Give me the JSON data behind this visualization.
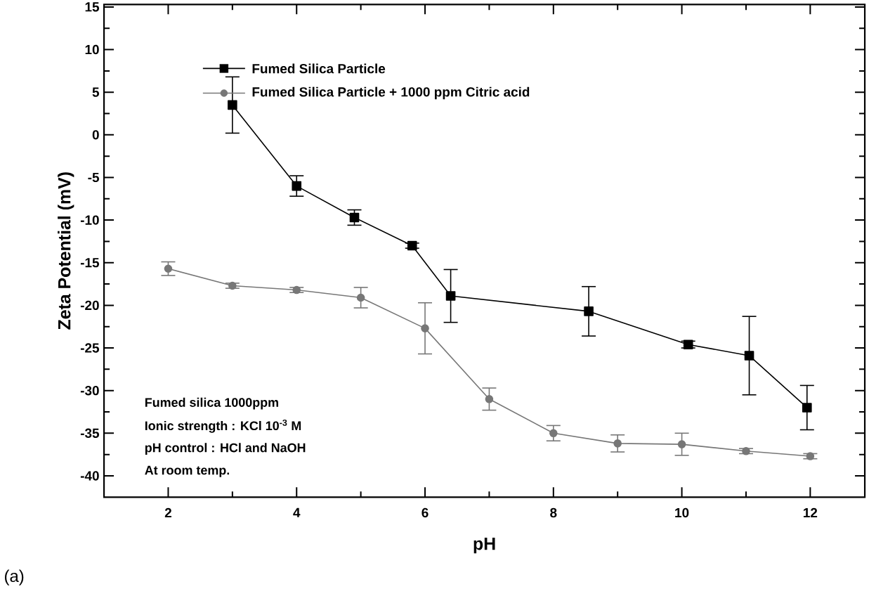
{
  "chart_data": {
    "type": "line",
    "xlabel": "pH",
    "ylabel": "Zeta Potential (mV)",
    "xlim": [
      1,
      12.85
    ],
    "ylim": [
      -42.5,
      15.3
    ],
    "xticks": [
      2,
      4,
      6,
      8,
      10,
      12
    ],
    "yticks": [
      -40,
      -35,
      -30,
      -25,
      -20,
      -15,
      -10,
      -5,
      0,
      5,
      10,
      15
    ],
    "legend": "top",
    "grid": false,
    "series": [
      {
        "name": "Fumed Silica Particle",
        "color": "#000000",
        "marker": "square",
        "x": [
          3,
          4,
          4.9,
          5.8,
          6.4,
          8.55,
          10.1,
          11.05,
          11.95
        ],
        "values": [
          3.5,
          -6,
          -9.7,
          -13,
          -18.9,
          -20.7,
          -24.6,
          -25.9,
          -32
        ],
        "errors": [
          3.3,
          1.2,
          0.9,
          0.3,
          3.1,
          2.9,
          0.4,
          4.6,
          2.6
        ]
      },
      {
        "name": "Fumed Silica Particle + 1000 ppm Citric acid",
        "color": "#777777",
        "marker": "circle",
        "x": [
          2,
          3,
          4,
          5,
          6,
          7,
          8,
          9,
          10,
          11,
          12
        ],
        "values": [
          -15.7,
          -17.7,
          -18.2,
          -19.1,
          -22.7,
          -31,
          -35,
          -36.2,
          -36.3,
          -37.1,
          -37.7
        ],
        "errors": [
          0.8,
          0.3,
          0.3,
          1.2,
          3,
          1.3,
          0.9,
          1,
          1.3,
          0.3,
          0.3
        ]
      }
    ],
    "annotations": [
      "Fumed silica 1000ppm",
      "Ionic strength : KCl 10$^{-3}$ M",
      "pH control : HCl and NaOH",
      "At room temp.",
      "(a)"
    ]
  }
}
